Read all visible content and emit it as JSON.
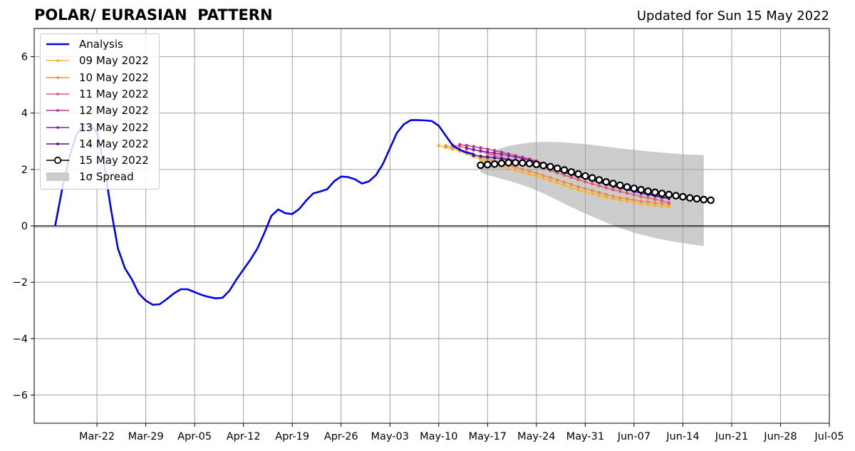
{
  "header": {
    "title": "POLAR/ EURASIAN  PATTERN",
    "updated": "Updated for Sun 15 May 2022"
  },
  "chart_data": {
    "type": "line",
    "title": "POLAR/ EURASIAN  PATTERN",
    "subtitle": "Updated for Sun 15 May 2022",
    "xlabel": "",
    "ylabel": "",
    "xlim": [
      "2022-03-13",
      "2022-07-05"
    ],
    "ylim": [
      -7,
      7
    ],
    "grid": true,
    "legend_position": "top-left",
    "x_ticks": [
      "2022-03-22",
      "2022-03-29",
      "2022-04-05",
      "2022-04-12",
      "2022-04-19",
      "2022-04-26",
      "2022-05-03",
      "2022-05-10",
      "2022-05-17",
      "2022-05-24",
      "2022-05-31",
      "2022-06-07",
      "2022-06-14",
      "2022-06-21",
      "2022-06-28",
      "2022-07-05"
    ],
    "x_tick_labels": [
      "Mar-22",
      "Mar-29",
      "Apr-05",
      "Apr-12",
      "Apr-19",
      "Apr-26",
      "May-03",
      "May-10",
      "May-17",
      "May-24",
      "May-31",
      "Jun-07",
      "Jun-14",
      "Jun-21",
      "Jun-28",
      "Jul-05"
    ],
    "y_ticks": [
      -6,
      -4,
      -2,
      0,
      2,
      4,
      6
    ],
    "y_tick_labels": [
      "−6",
      "−4",
      "−2",
      "0",
      "2",
      "4",
      "6"
    ],
    "legend": [
      "Analysis",
      "09 May 2022",
      "10 May 2022",
      "11 May 2022",
      "12 May 2022",
      "13 May 2022",
      "14 May 2022",
      "15 May 2022",
      "1σ Spread"
    ],
    "analysis": {
      "name": "Analysis",
      "color": "#0000ee",
      "x": [
        "2022-03-16",
        "2022-03-17",
        "2022-03-18",
        "2022-03-19",
        "2022-03-20",
        "2022-03-21",
        "2022-03-22",
        "2022-03-23",
        "2022-03-24",
        "2022-03-25",
        "2022-03-26",
        "2022-03-27",
        "2022-03-28",
        "2022-03-29",
        "2022-03-30",
        "2022-03-31",
        "2022-04-01",
        "2022-04-02",
        "2022-04-03",
        "2022-04-04",
        "2022-04-05",
        "2022-04-06",
        "2022-04-07",
        "2022-04-08",
        "2022-04-09",
        "2022-04-10",
        "2022-04-11",
        "2022-04-12",
        "2022-04-13",
        "2022-04-14",
        "2022-04-15",
        "2022-04-16",
        "2022-04-17",
        "2022-04-18",
        "2022-04-19",
        "2022-04-20",
        "2022-04-21",
        "2022-04-22",
        "2022-04-23",
        "2022-04-24",
        "2022-04-25",
        "2022-04-26",
        "2022-04-27",
        "2022-04-28",
        "2022-04-29",
        "2022-04-30",
        "2022-05-01",
        "2022-05-02",
        "2022-05-03",
        "2022-05-04",
        "2022-05-05",
        "2022-05-06",
        "2022-05-07",
        "2022-05-08",
        "2022-05-09",
        "2022-05-10",
        "2022-05-11",
        "2022-05-12",
        "2022-05-13",
        "2022-05-14",
        "2022-05-15"
      ],
      "y": [
        0.0,
        1.3,
        2.4,
        3.2,
        3.6,
        3.6,
        3.3,
        2.2,
        0.6,
        -0.8,
        -1.5,
        -1.9,
        -2.4,
        -2.65,
        -2.8,
        -2.78,
        -2.6,
        -2.4,
        -2.25,
        -2.25,
        -2.35,
        -2.45,
        -2.52,
        -2.57,
        -2.55,
        -2.3,
        -1.9,
        -1.55,
        -1.2,
        -0.8,
        -0.25,
        0.35,
        0.58,
        0.45,
        0.42,
        0.6,
        0.9,
        1.15,
        1.22,
        1.3,
        1.58,
        1.75,
        1.73,
        1.65,
        1.5,
        1.58,
        1.8,
        2.2,
        2.75,
        3.3,
        3.6,
        3.75,
        3.75,
        3.74,
        3.72,
        3.55,
        3.2,
        2.85,
        2.7,
        2.6,
        2.55
      ]
    },
    "spread": {
      "name": "1σ Spread",
      "color": "#cccccc",
      "x": [
        "2022-05-16",
        "2022-05-17",
        "2022-05-18",
        "2022-05-19",
        "2022-05-20",
        "2022-05-21",
        "2022-05-22",
        "2022-05-23",
        "2022-05-24",
        "2022-05-25",
        "2022-05-26",
        "2022-05-27",
        "2022-05-28",
        "2022-05-29",
        "2022-05-30",
        "2022-05-31",
        "2022-06-01",
        "2022-06-02",
        "2022-06-03",
        "2022-06-04",
        "2022-06-05",
        "2022-06-06",
        "2022-06-07",
        "2022-06-08",
        "2022-06-09",
        "2022-06-10",
        "2022-06-11",
        "2022-06-12",
        "2022-06-13",
        "2022-06-14",
        "2022-06-15",
        "2022-06-16",
        "2022-06-17"
      ],
      "upper": [
        2.4,
        2.55,
        2.67,
        2.76,
        2.83,
        2.88,
        2.92,
        2.95,
        2.97,
        2.98,
        2.98,
        2.97,
        2.96,
        2.94,
        2.92,
        2.9,
        2.87,
        2.84,
        2.81,
        2.78,
        2.75,
        2.72,
        2.7,
        2.67,
        2.64,
        2.62,
        2.6,
        2.58,
        2.56,
        2.54,
        2.53,
        2.52,
        2.51
      ],
      "lower": [
        1.9,
        1.8,
        1.74,
        1.67,
        1.6,
        1.53,
        1.45,
        1.36,
        1.26,
        1.15,
        1.03,
        0.91,
        0.79,
        0.67,
        0.55,
        0.44,
        0.33,
        0.22,
        0.12,
        0.02,
        -0.08,
        -0.16,
        -0.24,
        -0.31,
        -0.37,
        -0.43,
        -0.48,
        -0.53,
        -0.57,
        -0.61,
        -0.65,
        -0.68,
        -0.72
      ]
    },
    "series": [
      {
        "name": "09 May 2022",
        "color": "#f5b32f",
        "start": "2022-05-10",
        "values": [
          2.85,
          2.78,
          2.72,
          2.65,
          2.56,
          2.46,
          2.36,
          2.27,
          2.18,
          2.1,
          2.03,
          1.96,
          1.9,
          1.83,
          1.76,
          1.68,
          1.6,
          1.52,
          1.44,
          1.36,
          1.28,
          1.21,
          1.14,
          1.07,
          1.01,
          0.96,
          0.92,
          0.88,
          0.84,
          0.8,
          0.76,
          0.73,
          0.7,
          0.67
        ]
      },
      {
        "name": "10 May 2022",
        "color": "#ef8a45",
        "start": "2022-05-11",
        "values": [
          2.84,
          2.78,
          2.71,
          2.63,
          2.54,
          2.45,
          2.36,
          2.28,
          2.21,
          2.14,
          2.08,
          2.01,
          1.94,
          1.87,
          1.79,
          1.71,
          1.63,
          1.55,
          1.47,
          1.39,
          1.32,
          1.25,
          1.18,
          1.11,
          1.05,
          1.0,
          0.96,
          0.92,
          0.88,
          0.85,
          0.82,
          0.79,
          0.76
        ]
      },
      {
        "name": "11 May 2022",
        "color": "#e05a74",
        "start": "2022-05-12",
        "values": [
          2.86,
          2.82,
          2.77,
          2.71,
          2.64,
          2.57,
          2.5,
          2.43,
          2.37,
          2.31,
          2.25,
          2.18,
          2.11,
          2.04,
          1.96,
          1.88,
          1.8,
          1.72,
          1.64,
          1.56,
          1.49,
          1.42,
          1.35,
          1.28,
          1.22,
          1.16,
          1.1,
          1.04,
          0.99,
          0.94,
          0.89,
          0.82
        ]
      },
      {
        "name": "12 May 2022",
        "color": "#b6388f",
        "start": "2022-05-13",
        "values": [
          2.88,
          2.85,
          2.81,
          2.77,
          2.72,
          2.67,
          2.61,
          2.55,
          2.49,
          2.43,
          2.37,
          2.3,
          2.22,
          2.14,
          2.06,
          1.98,
          1.9,
          1.82,
          1.74,
          1.66,
          1.59,
          1.52,
          1.45,
          1.38,
          1.32,
          1.26,
          1.2,
          1.14,
          1.09,
          1.04,
          0.99
        ]
      },
      {
        "name": "13 May 2022",
        "color": "#8221a0",
        "start": "2022-05-14",
        "values": [
          2.75,
          2.7,
          2.66,
          2.62,
          2.58,
          2.54,
          2.49,
          2.44,
          2.39,
          2.33,
          2.27,
          2.2,
          2.12,
          2.04,
          1.96,
          1.88,
          1.8,
          1.73,
          1.66,
          1.59,
          1.52,
          1.45,
          1.38,
          1.32,
          1.26,
          1.2,
          1.14,
          1.09,
          1.04,
          0.99
        ]
      },
      {
        "name": "14 May 2022",
        "color": "#4b1387",
        "start": "2022-05-15",
        "values": [
          2.5,
          2.47,
          2.44,
          2.41,
          2.38,
          2.35,
          2.31,
          2.27,
          2.22,
          2.16,
          2.1,
          2.03,
          1.96,
          1.89,
          1.82,
          1.75,
          1.68,
          1.61,
          1.54,
          1.47,
          1.4,
          1.34,
          1.28,
          1.22,
          1.16,
          1.11,
          1.06,
          1.01,
          0.97
        ]
      },
      {
        "name": "15 May 2022",
        "color": "#000000",
        "start": "2022-05-16",
        "values": [
          2.15,
          2.17,
          2.19,
          2.22,
          2.24,
          2.24,
          2.23,
          2.21,
          2.18,
          2.14,
          2.1,
          2.04,
          1.98,
          1.91,
          1.84,
          1.77,
          1.7,
          1.63,
          1.56,
          1.5,
          1.44,
          1.38,
          1.33,
          1.28,
          1.23,
          1.19,
          1.15,
          1.11,
          1.07,
          1.03,
          0.99,
          0.96,
          0.93,
          0.91
        ]
      }
    ]
  }
}
